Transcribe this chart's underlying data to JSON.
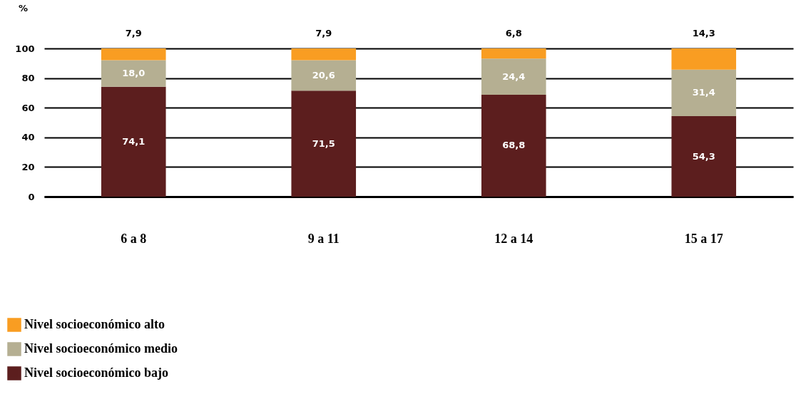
{
  "chart_data": {
    "type": "bar",
    "stacked": true,
    "ylabel": "%",
    "categories": [
      "6 a 8",
      "9 a 11",
      "12 a 14",
      "15 a 17"
    ],
    "series": [
      {
        "name": "Nivel socioeconómico bajo",
        "color": "#5c1e1e",
        "values": [
          74.1,
          71.5,
          68.8,
          54.3
        ],
        "value_labels": [
          "74,1",
          "71,5",
          "68,8",
          "54,3"
        ]
      },
      {
        "name": "Nivel socioeconómico medio",
        "color": "#b5af92",
        "values": [
          18.0,
          20.6,
          24.4,
          31.4
        ],
        "value_labels": [
          "18,0",
          "20,6",
          "24,4",
          "31,4"
        ]
      },
      {
        "name": "Nivel socioeconómico alto",
        "color": "#f99d22",
        "values": [
          7.9,
          7.9,
          6.8,
          14.3
        ],
        "value_labels": [
          "7,9",
          "7,9",
          "6,8",
          "14,3"
        ]
      }
    ],
    "ylim": [
      0,
      100
    ],
    "yticks": [
      0,
      20,
      40,
      60,
      80,
      100
    ],
    "grid": "y",
    "legend": "bottom left"
  }
}
